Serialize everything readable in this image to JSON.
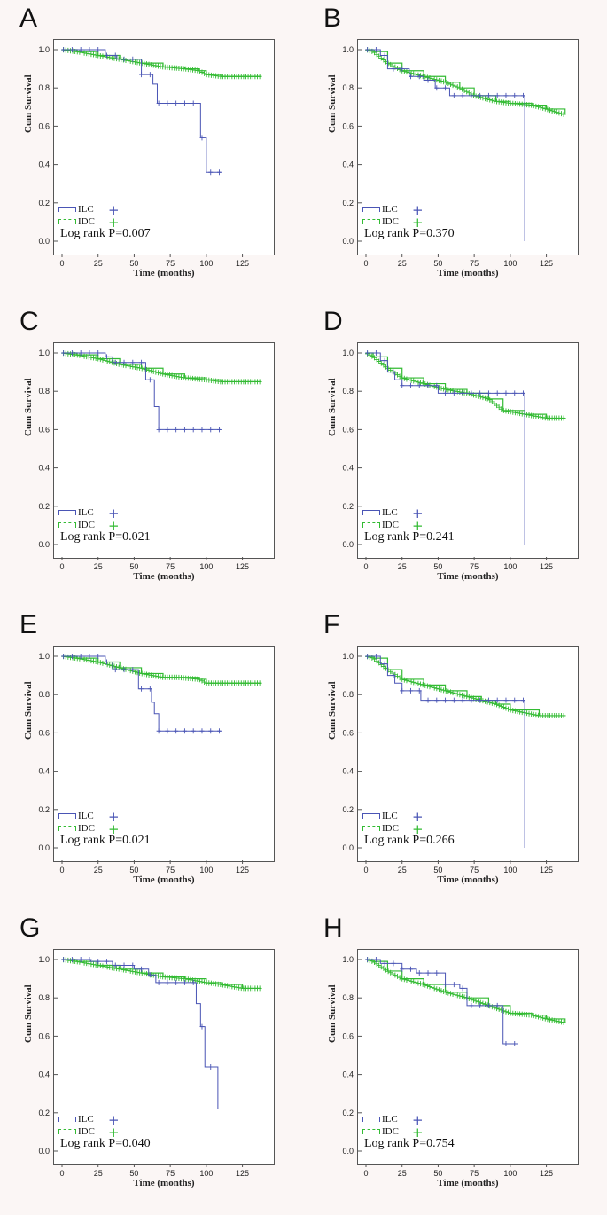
{
  "colors": {
    "ILC": "#4a55b5",
    "IDC": "#33bb33"
  },
  "axis": {
    "xlabel": "Time (months)",
    "ylabel": "Cum Survival",
    "xticks": [
      0,
      25,
      50,
      75,
      100,
      125
    ],
    "yticks": [
      0.0,
      0.2,
      0.4,
      0.6,
      0.8,
      1.0
    ]
  },
  "legend": {
    "ilc": "ILC",
    "idc": "IDC"
  },
  "chart_data": [
    {
      "panel": "A",
      "type": "line",
      "title": "",
      "xlabel": "Time (months)",
      "ylabel": "Cum Survival",
      "xlim": [
        0,
        140
      ],
      "ylim": [
        0,
        1.0
      ],
      "pvalue": "Log rank P=0.007",
      "series": [
        {
          "name": "ILC",
          "x": [
            0,
            30,
            30,
            38,
            38,
            55,
            55,
            63,
            63,
            66,
            66,
            96,
            96,
            100,
            100,
            110
          ],
          "y": [
            1.0,
            1.0,
            0.97,
            0.97,
            0.95,
            0.95,
            0.87,
            0.87,
            0.82,
            0.82,
            0.72,
            0.72,
            0.54,
            0.54,
            0.36,
            0.36
          ]
        },
        {
          "name": "IDC",
          "x": [
            0,
            10,
            25,
            40,
            55,
            70,
            85,
            95,
            100,
            110,
            138
          ],
          "y": [
            1.0,
            0.99,
            0.97,
            0.95,
            0.93,
            0.91,
            0.9,
            0.89,
            0.87,
            0.86,
            0.86
          ]
        }
      ]
    },
    {
      "panel": "B",
      "type": "line",
      "title": "",
      "xlabel": "Time (months)",
      "ylabel": "Cum Survival",
      "xlim": [
        0,
        140
      ],
      "ylim": [
        0,
        1.0
      ],
      "pvalue": "Log rank P=0.370",
      "series": [
        {
          "name": "ILC",
          "x": [
            0,
            10,
            15,
            15,
            25,
            30,
            40,
            48,
            50,
            58,
            58,
            110,
            110
          ],
          "y": [
            1.0,
            0.97,
            0.93,
            0.9,
            0.9,
            0.86,
            0.84,
            0.8,
            0.8,
            0.76,
            0.76,
            0.76,
            0.0
          ]
        },
        {
          "name": "IDC",
          "x": [
            0,
            5,
            15,
            25,
            40,
            55,
            65,
            75,
            90,
            100,
            115,
            125,
            138
          ],
          "y": [
            1.0,
            0.99,
            0.93,
            0.89,
            0.86,
            0.83,
            0.8,
            0.76,
            0.73,
            0.72,
            0.71,
            0.69,
            0.66
          ]
        }
      ]
    },
    {
      "panel": "C",
      "type": "line",
      "title": "",
      "xlabel": "Time (months)",
      "ylabel": "Cum Survival",
      "xlim": [
        0,
        140
      ],
      "ylim": [
        0,
        1.0
      ],
      "pvalue": "Log rank P=0.021",
      "series": [
        {
          "name": "ILC",
          "x": [
            0,
            22,
            30,
            35,
            55,
            58,
            58,
            64,
            64,
            67,
            67,
            110
          ],
          "y": [
            1.0,
            1.0,
            0.98,
            0.95,
            0.95,
            0.86,
            0.86,
            0.8,
            0.72,
            0.72,
            0.6,
            0.6
          ]
        },
        {
          "name": "IDC",
          "x": [
            0,
            10,
            25,
            40,
            55,
            70,
            85,
            100,
            110,
            138
          ],
          "y": [
            1.0,
            0.99,
            0.97,
            0.94,
            0.92,
            0.89,
            0.87,
            0.86,
            0.85,
            0.85
          ]
        }
      ]
    },
    {
      "panel": "D",
      "type": "line",
      "title": "",
      "xlabel": "Time (months)",
      "ylabel": "Cum Survival",
      "xlim": [
        0,
        140
      ],
      "ylim": [
        0,
        1.0
      ],
      "pvalue": "Log rank P=0.241",
      "series": [
        {
          "name": "ILC",
          "x": [
            0,
            10,
            15,
            20,
            25,
            45,
            50,
            110,
            110
          ],
          "y": [
            1.0,
            0.96,
            0.9,
            0.86,
            0.83,
            0.83,
            0.79,
            0.79,
            0.0
          ]
        },
        {
          "name": "IDC",
          "x": [
            0,
            5,
            15,
            25,
            40,
            55,
            70,
            85,
            95,
            110,
            125,
            138
          ],
          "y": [
            1.0,
            0.98,
            0.92,
            0.87,
            0.84,
            0.81,
            0.79,
            0.76,
            0.7,
            0.68,
            0.66,
            0.66
          ]
        }
      ]
    },
    {
      "panel": "E",
      "type": "line",
      "title": "",
      "xlabel": "Time (months)",
      "ylabel": "Cum Survival",
      "xlim": [
        0,
        140
      ],
      "ylim": [
        0,
        1.0
      ],
      "pvalue": "Log rank P=0.021",
      "series": [
        {
          "name": "ILC",
          "x": [
            0,
            25,
            30,
            35,
            50,
            53,
            53,
            62,
            62,
            64,
            64,
            67,
            67,
            110
          ],
          "y": [
            1.0,
            1.0,
            0.97,
            0.93,
            0.93,
            0.83,
            0.83,
            0.83,
            0.76,
            0.76,
            0.7,
            0.7,
            0.61,
            0.61
          ]
        },
        {
          "name": "IDC",
          "x": [
            0,
            10,
            25,
            40,
            55,
            70,
            80,
            95,
            100,
            138
          ],
          "y": [
            1.0,
            0.99,
            0.97,
            0.94,
            0.91,
            0.89,
            0.89,
            0.88,
            0.86,
            0.86
          ]
        }
      ]
    },
    {
      "panel": "F",
      "type": "line",
      "title": "",
      "xlabel": "Time (months)",
      "ylabel": "Cum Survival",
      "xlim": [
        0,
        140
      ],
      "ylim": [
        0,
        1.0
      ],
      "pvalue": "Log rank P=0.266",
      "series": [
        {
          "name": "ILC",
          "x": [
            0,
            10,
            15,
            20,
            25,
            35,
            38,
            38,
            110,
            110
          ],
          "y": [
            1.0,
            0.96,
            0.9,
            0.86,
            0.82,
            0.82,
            0.82,
            0.77,
            0.77,
            0.0
          ]
        },
        {
          "name": "IDC",
          "x": [
            0,
            5,
            15,
            25,
            40,
            55,
            70,
            80,
            90,
            100,
            120,
            138
          ],
          "y": [
            1.0,
            0.99,
            0.93,
            0.88,
            0.85,
            0.82,
            0.79,
            0.77,
            0.75,
            0.72,
            0.69,
            0.69
          ]
        }
      ]
    },
    {
      "panel": "G",
      "type": "line",
      "title": "",
      "xlabel": "Time (months)",
      "ylabel": "Cum Survival",
      "xlim": [
        0,
        140
      ],
      "ylim": [
        0,
        1.0
      ],
      "pvalue": "Log rank P=0.040",
      "series": [
        {
          "name": "ILC",
          "x": [
            0,
            20,
            35,
            50,
            60,
            65,
            65,
            93,
            93,
            96,
            96,
            99,
            99,
            103,
            103,
            108,
            108
          ],
          "y": [
            1.0,
            0.99,
            0.97,
            0.95,
            0.92,
            0.92,
            0.88,
            0.88,
            0.77,
            0.77,
            0.65,
            0.65,
            0.44,
            0.44,
            0.44,
            0.44,
            0.22
          ]
        },
        {
          "name": "IDC",
          "x": [
            0,
            10,
            25,
            40,
            55,
            70,
            85,
            100,
            110,
            125,
            138
          ],
          "y": [
            1.0,
            0.99,
            0.97,
            0.95,
            0.93,
            0.91,
            0.9,
            0.88,
            0.87,
            0.85,
            0.85
          ]
        }
      ]
    },
    {
      "panel": "H",
      "type": "line",
      "title": "",
      "xlabel": "Time (months)",
      "ylabel": "Cum Survival",
      "xlim": [
        0,
        140
      ],
      "ylim": [
        0,
        1.0
      ],
      "pvalue": "Log rank P=0.754",
      "series": [
        {
          "name": "ILC",
          "x": [
            0,
            10,
            25,
            35,
            45,
            55,
            65,
            70,
            70,
            80,
            85,
            95,
            95,
            105
          ],
          "y": [
            1.0,
            0.98,
            0.95,
            0.93,
            0.93,
            0.87,
            0.85,
            0.85,
            0.76,
            0.76,
            0.76,
            0.7,
            0.56,
            0.56
          ]
        },
        {
          "name": "IDC",
          "x": [
            0,
            5,
            15,
            25,
            40,
            55,
            70,
            85,
            100,
            115,
            125,
            138
          ],
          "y": [
            1.0,
            0.99,
            0.94,
            0.9,
            0.87,
            0.83,
            0.8,
            0.76,
            0.72,
            0.71,
            0.69,
            0.67
          ]
        }
      ]
    }
  ]
}
